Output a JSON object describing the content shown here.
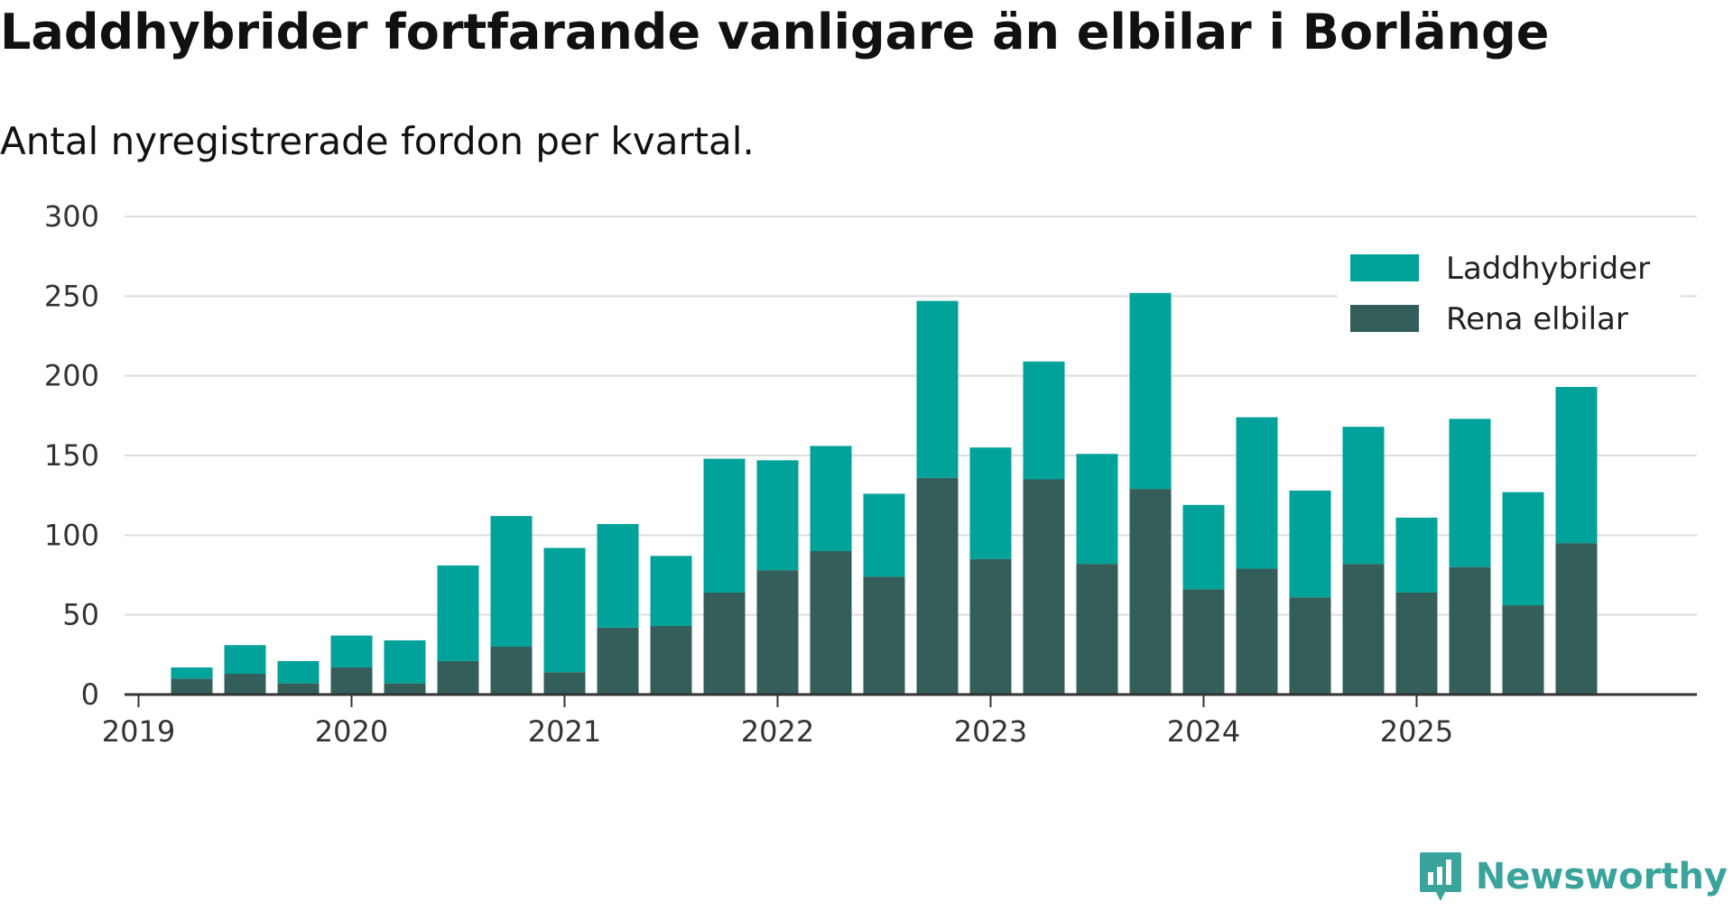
{
  "title": "Laddhybrider fortfarande vanligare än elbilar i Borlänge",
  "subtitle": "Antal nyregistrerade fordon per kvartal.",
  "brand": "Newsworthy",
  "colors": {
    "laddhybrider": "#00a29a",
    "rena_elbilar": "#335e5a",
    "grid": "#dddddd",
    "axis": "#333333",
    "brand": "#3aa39b"
  },
  "chart_data": {
    "type": "bar",
    "stacked": true,
    "title": "Laddhybrider fortfarande vanligare än elbilar i Borlänge",
    "subtitle": "Antal nyregistrerade fordon per kvartal.",
    "xlabel": "",
    "ylabel": "",
    "ylim": [
      0,
      300
    ],
    "yticks": [
      0,
      50,
      100,
      150,
      200,
      250,
      300
    ],
    "year_ticks": [
      "2019",
      "2020",
      "2021",
      "2022",
      "2023",
      "2024",
      "2025"
    ],
    "legend_position": "top-right",
    "grid": true,
    "categories": [
      "2019 Q1",
      "2019 Q2",
      "2019 Q3",
      "2019 Q4",
      "2020 Q1",
      "2020 Q2",
      "2020 Q3",
      "2020 Q4",
      "2021 Q1",
      "2021 Q2",
      "2021 Q3",
      "2021 Q4",
      "2022 Q1",
      "2022 Q2",
      "2022 Q3",
      "2022 Q4",
      "2023 Q1",
      "2023 Q2",
      "2023 Q3",
      "2023 Q4",
      "2024 Q1",
      "2024 Q2",
      "2024 Q3",
      "2024 Q4",
      "2025 Q1",
      "2025 Q2",
      "2025 Q3",
      "2025 Q4"
    ],
    "series": [
      {
        "name": "Rena elbilar",
        "values": [
          0,
          10,
          13,
          7,
          17,
          7,
          21,
          30,
          14,
          42,
          43,
          64,
          78,
          90,
          74,
          136,
          85,
          135,
          82,
          129,
          66,
          79,
          61,
          82,
          64,
          80,
          56,
          95
        ]
      },
      {
        "name": "Laddhybrider",
        "values": [
          0,
          7,
          18,
          14,
          20,
          27,
          60,
          82,
          78,
          65,
          44,
          84,
          69,
          66,
          52,
          111,
          70,
          74,
          69,
          123,
          53,
          95,
          67,
          86,
          47,
          93,
          71,
          98
        ]
      }
    ]
  }
}
